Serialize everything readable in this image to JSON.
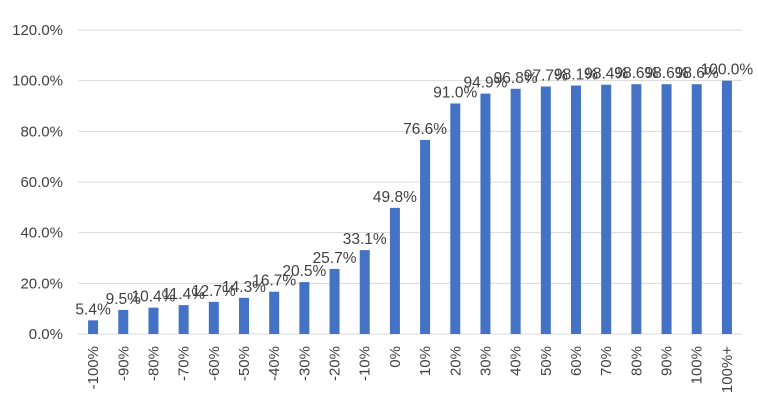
{
  "chart_data": {
    "type": "bar",
    "title": "",
    "xlabel": "",
    "ylabel": "",
    "ylim": [
      0,
      120
    ],
    "y_tick_values": [
      0,
      20,
      40,
      60,
      80,
      100,
      120
    ],
    "y_tick_labels": [
      "0.0%",
      "20.0%",
      "40.0%",
      "60.0%",
      "80.0%",
      "100.0%",
      "120.0%"
    ],
    "grid": true,
    "legend": "none",
    "categories": [
      "-100%",
      "-90%",
      "-80%",
      "-70%",
      "-60%",
      "-50%",
      "-40%",
      "-30%",
      "-20%",
      "-10%",
      "0%",
      "10%",
      "20%",
      "30%",
      "40%",
      "50%",
      "60%",
      "70%",
      "80%",
      "90%",
      "100%",
      "100%+"
    ],
    "values": [
      5.4,
      9.5,
      10.4,
      11.4,
      12.7,
      14.3,
      16.7,
      20.5,
      25.7,
      33.1,
      49.8,
      76.6,
      91.0,
      94.9,
      96.8,
      97.7,
      98.1,
      98.4,
      98.6,
      98.6,
      98.6,
      100.0
    ],
    "data_labels": [
      "5.4%",
      "9.5%",
      "10.4%",
      "11.4%",
      "12.7%",
      "14.3%",
      "16.7%",
      "20.5%",
      "25.7%",
      "33.1%",
      "49.8%",
      "76.6%",
      "91.0%",
      "94.9%",
      "96.8%",
      "97.7%",
      "98.1%",
      "98.4%",
      "98.6%",
      "98.6%",
      "98.6%",
      "100.0%"
    ],
    "colors": {
      "bar": "#4472c4",
      "grid": "#d9d9d9",
      "text": "#404040"
    }
  }
}
